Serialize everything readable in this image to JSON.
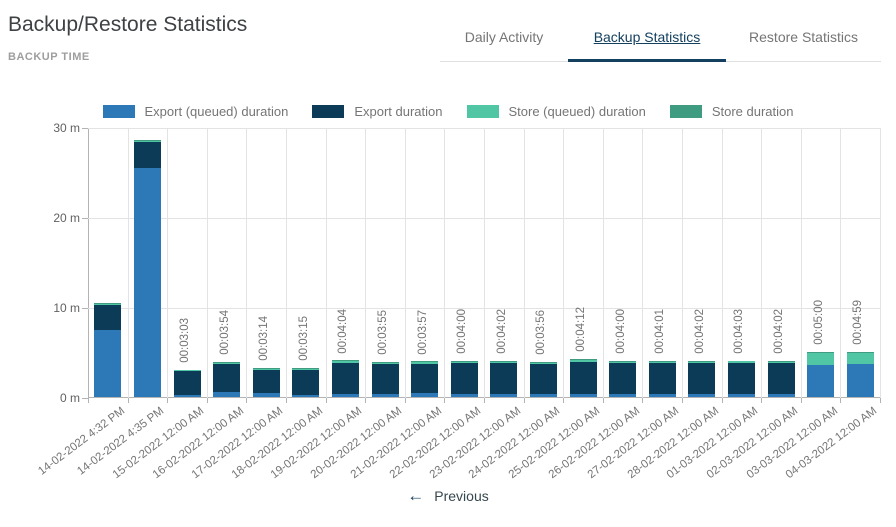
{
  "header": {
    "title": "Backup/Restore Statistics",
    "section_label": "BACKUP TIME"
  },
  "tabs": [
    {
      "label": "Daily Activity",
      "active": false
    },
    {
      "label": "Backup Statistics",
      "active": true
    },
    {
      "label": "Restore Statistics",
      "active": false
    }
  ],
  "icons": {
    "previous_arrow": "←"
  },
  "pagination": {
    "previous_label": "Previous"
  },
  "colors": {
    "accent_navy": "#14405f",
    "export_queued": "#2d78b7",
    "export": "#0c3b58",
    "store_queued": "#50c6a5",
    "store": "#3f9c81",
    "tab_inactive_text": "#757575",
    "axis_text": "#616161",
    "grid": "#e3e3e3"
  },
  "chart_data": {
    "type": "bar",
    "stacked": true,
    "title": "BACKUP TIME",
    "ylabel": "minutes",
    "ylim": [
      0,
      30
    ],
    "grid": true,
    "legend_position": "top",
    "y_ticks": [
      {
        "value": 0,
        "label": "0 m"
      },
      {
        "value": 10,
        "label": "10 m"
      },
      {
        "value": 20,
        "label": "20 m"
      },
      {
        "value": 30,
        "label": "30 m"
      }
    ],
    "categories": [
      "14-02-2022 4:32 PM",
      "14-02-2022 4:35 PM",
      "15-02-2022 12:00 AM",
      "16-02-2022 12:00 AM",
      "17-02-2022 12:00 AM",
      "18-02-2022 12:00 AM",
      "19-02-2022 12:00 AM",
      "20-02-2022 12:00 AM",
      "21-02-2022 12:00 AM",
      "22-02-2022 12:00 AM",
      "23-02-2022 12:00 AM",
      "24-02-2022 12:00 AM",
      "25-02-2022 12:00 AM",
      "26-02-2022 12:00 AM",
      "27-02-2022 12:00 AM",
      "28-02-2022 12:00 AM",
      "01-03-2022 12:00 AM",
      "02-03-2022 12:00 AM",
      "03-03-2022 12:00 AM",
      "04-03-2022 12:00 AM"
    ],
    "bar_total_labels": [
      "",
      "",
      "00:03:03",
      "00:03:54",
      "00:03:14",
      "00:03:15",
      "00:04:04",
      "00:03:55",
      "00:03:57",
      "00:04:00",
      "00:04:02",
      "00:03:56",
      "00:04:12",
      "00:04:00",
      "00:04:01",
      "00:04:02",
      "00:04:03",
      "00:04:02",
      "00:05:00",
      "00:04:59"
    ],
    "series": [
      {
        "name": "Export (queued) duration",
        "color": "#2d78b7",
        "values": [
          7.4,
          25.4,
          0.25,
          0.55,
          0.4,
          0.25,
          0.3,
          0.35,
          0.4,
          0.35,
          0.35,
          0.35,
          0.35,
          0.3,
          0.35,
          0.35,
          0.35,
          0.35,
          3.6,
          3.65
        ]
      },
      {
        "name": "Export duration",
        "color": "#0c3b58",
        "values": [
          2.8,
          2.95,
          2.6,
          3.15,
          2.63,
          2.8,
          3.47,
          3.32,
          3.3,
          3.4,
          3.43,
          3.33,
          3.55,
          3.45,
          3.42,
          3.43,
          3.45,
          3.43,
          0,
          0
        ]
      },
      {
        "name": "Store (queued) duration",
        "color": "#50c6a5",
        "values": [
          0.1,
          0.1,
          0.1,
          0.1,
          0.1,
          0.1,
          0.2,
          0.15,
          0.15,
          0.15,
          0.15,
          0.15,
          0.2,
          0.15,
          0.15,
          0.15,
          0.15,
          0.15,
          1.25,
          1.2
        ]
      },
      {
        "name": "Store duration",
        "color": "#3f9c81",
        "values": [
          0.1,
          0.1,
          0.1,
          0.1,
          0.1,
          0.1,
          0.1,
          0.1,
          0.1,
          0.1,
          0.1,
          0.1,
          0.1,
          0.1,
          0.1,
          0.1,
          0.1,
          0.1,
          0.15,
          0.13
        ]
      }
    ]
  }
}
